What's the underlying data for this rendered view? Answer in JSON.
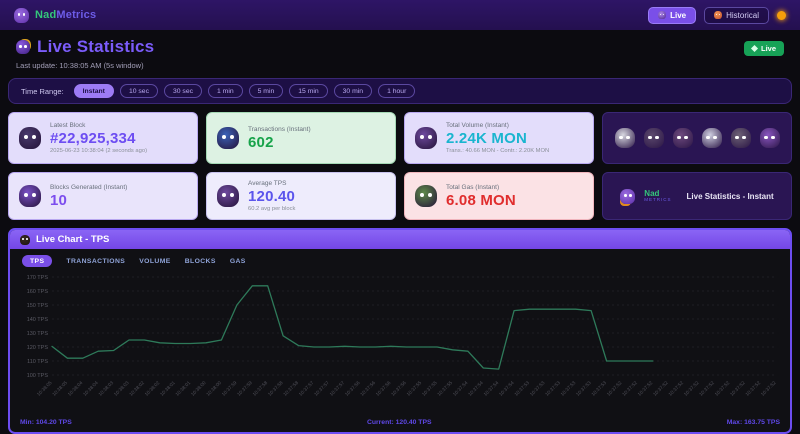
{
  "topbar": {
    "brand_nad": "Nad",
    "brand_metrics": "Metrics",
    "live_label": "Live",
    "historical_label": "Historical"
  },
  "header": {
    "title": "Live Statistics",
    "last_update": "Last update: 10:38:05 AM  (5s window)",
    "live_badge": "Live"
  },
  "time_range": {
    "label": "Time Range:",
    "selected": "Instant",
    "options": [
      "Instant",
      "10 sec",
      "30 sec",
      "1 min",
      "5 min",
      "15 min",
      "30 min",
      "1 hour"
    ]
  },
  "stat_cards": [
    {
      "icon": "latest-block-mascot-icon",
      "icon_color": "#4a3b6e",
      "label": "Latest Block",
      "value": "#22,925,334",
      "subtitle": "2025-06-23 10:38:04 (2 seconds ago)",
      "bg": "#e3ddfb",
      "border": "#b9a8f0",
      "value_color": "#6d4df2"
    },
    {
      "icon": "transactions-mascot-icon",
      "icon_color": "#3b62b8",
      "label": "Transactions (Instant)",
      "value": "602",
      "subtitle": "",
      "bg": "#ddf2e3",
      "border": "#a5d8b5",
      "value_color": "#17a34a"
    },
    {
      "icon": "volume-mascot-icon",
      "icon_color": "#6e4a9e",
      "label": "Total Volume (Instant)",
      "value": "2.24K MON",
      "subtitle": "Trans.: 40.66 MON - Contr.: 2.20K MON",
      "bg": "#e3ddfb",
      "border": "#b9a8f0",
      "value_color": "#1ab5cf"
    },
    {
      "icon": "blocks-spider-icon",
      "icon_color": "#7b52c8",
      "label": "Blocks Generated (Instant)",
      "value": "10",
      "subtitle": "",
      "bg": "#e9e4fb",
      "border": "#b9a8f0",
      "value_color": "#7c4dee"
    },
    {
      "icon": "average-tps-mascot-icon",
      "icon_color": "#6e4a9e",
      "label": "Average TPS",
      "value": "120.40",
      "subtitle": "60.2 avg per block",
      "bg": "#eeecfc",
      "border": "#c8c2ee",
      "value_color": "#5b55ec"
    },
    {
      "icon": "gas-mascot-icon",
      "icon_color": "#5e8a4a",
      "label": "Total Gas (Instant)",
      "value": "6.08 MON",
      "subtitle": "",
      "bg": "#fbe2e5",
      "border": "#f0b5bd",
      "value_color": "#e02d2d"
    }
  ],
  "mascots_card": {
    "sprites": [
      "#d8d8e0",
      "#5d4a6e",
      "#6e4a7e",
      "#cfcfe0",
      "#6e6276",
      "#8a56c0"
    ]
  },
  "branding_card": {
    "nad": "Nad",
    "metrics": "Metrics",
    "text": "Live Statistics - Instant"
  },
  "chart": {
    "title": "Live Chart - TPS",
    "tabs": [
      "TPS",
      "TRANSACTIONS",
      "VOLUME",
      "BLOCKS",
      "GAS"
    ],
    "selected_tab": "TPS",
    "min_label": "Min: 104.20 TPS",
    "current_label": "Current: 120.40 TPS",
    "max_label": "Max: 163.75 TPS"
  },
  "chart_data": {
    "type": "line",
    "title": "Live Chart - TPS",
    "ylabel": "TPS",
    "ylim": [
      100,
      170
    ],
    "y_ticks": [
      170,
      160,
      150,
      140,
      130,
      120,
      110,
      100
    ],
    "y_tick_suffix": " TPS",
    "grid": true,
    "line_color": "#2e7a5a",
    "x_labels": [
      "10:38:05",
      "10:38:05",
      "10:38:04",
      "10:38:04",
      "10:38:03",
      "10:38:03",
      "10:38:02",
      "10:38:02",
      "10:38:01",
      "10:38:01",
      "10:38:00",
      "10:38:00",
      "10:37:59",
      "10:37:59",
      "10:37:58",
      "10:37:58",
      "10:37:58",
      "10:37:57",
      "10:37:57",
      "10:37:57",
      "10:37:56",
      "10:37:56",
      "10:37:56",
      "10:37:56",
      "10:37:55",
      "10:37:55",
      "10:37:55",
      "10:37:54",
      "10:37:54",
      "10:37:54",
      "10:37:54",
      "10:37:53",
      "10:37:53",
      "10:37:53",
      "10:37:53",
      "10:37:53",
      "10:37:53",
      "10:37:52",
      "10:37:52",
      "10:37:52",
      "10:37:52",
      "10:37:52",
      "10:37:52",
      "10:37:52",
      "10:37:52",
      "10:37:52",
      "10:37:52",
      "10:37:52"
    ],
    "values": [
      120.4,
      112,
      112,
      117,
      117.5,
      125,
      125,
      123,
      122.5,
      122.5,
      123,
      125,
      150,
      163.75,
      163.75,
      128,
      121,
      120,
      120,
      120.5,
      120,
      120,
      120.5,
      120,
      120,
      120,
      118,
      117,
      105,
      104.2,
      146,
      147,
      147,
      147,
      147,
      146,
      110,
      110,
      110,
      110,
      null,
      null,
      null,
      null,
      null,
      null,
      null,
      null
    ],
    "min": 104.2,
    "current": 120.4,
    "max": 163.75
  }
}
